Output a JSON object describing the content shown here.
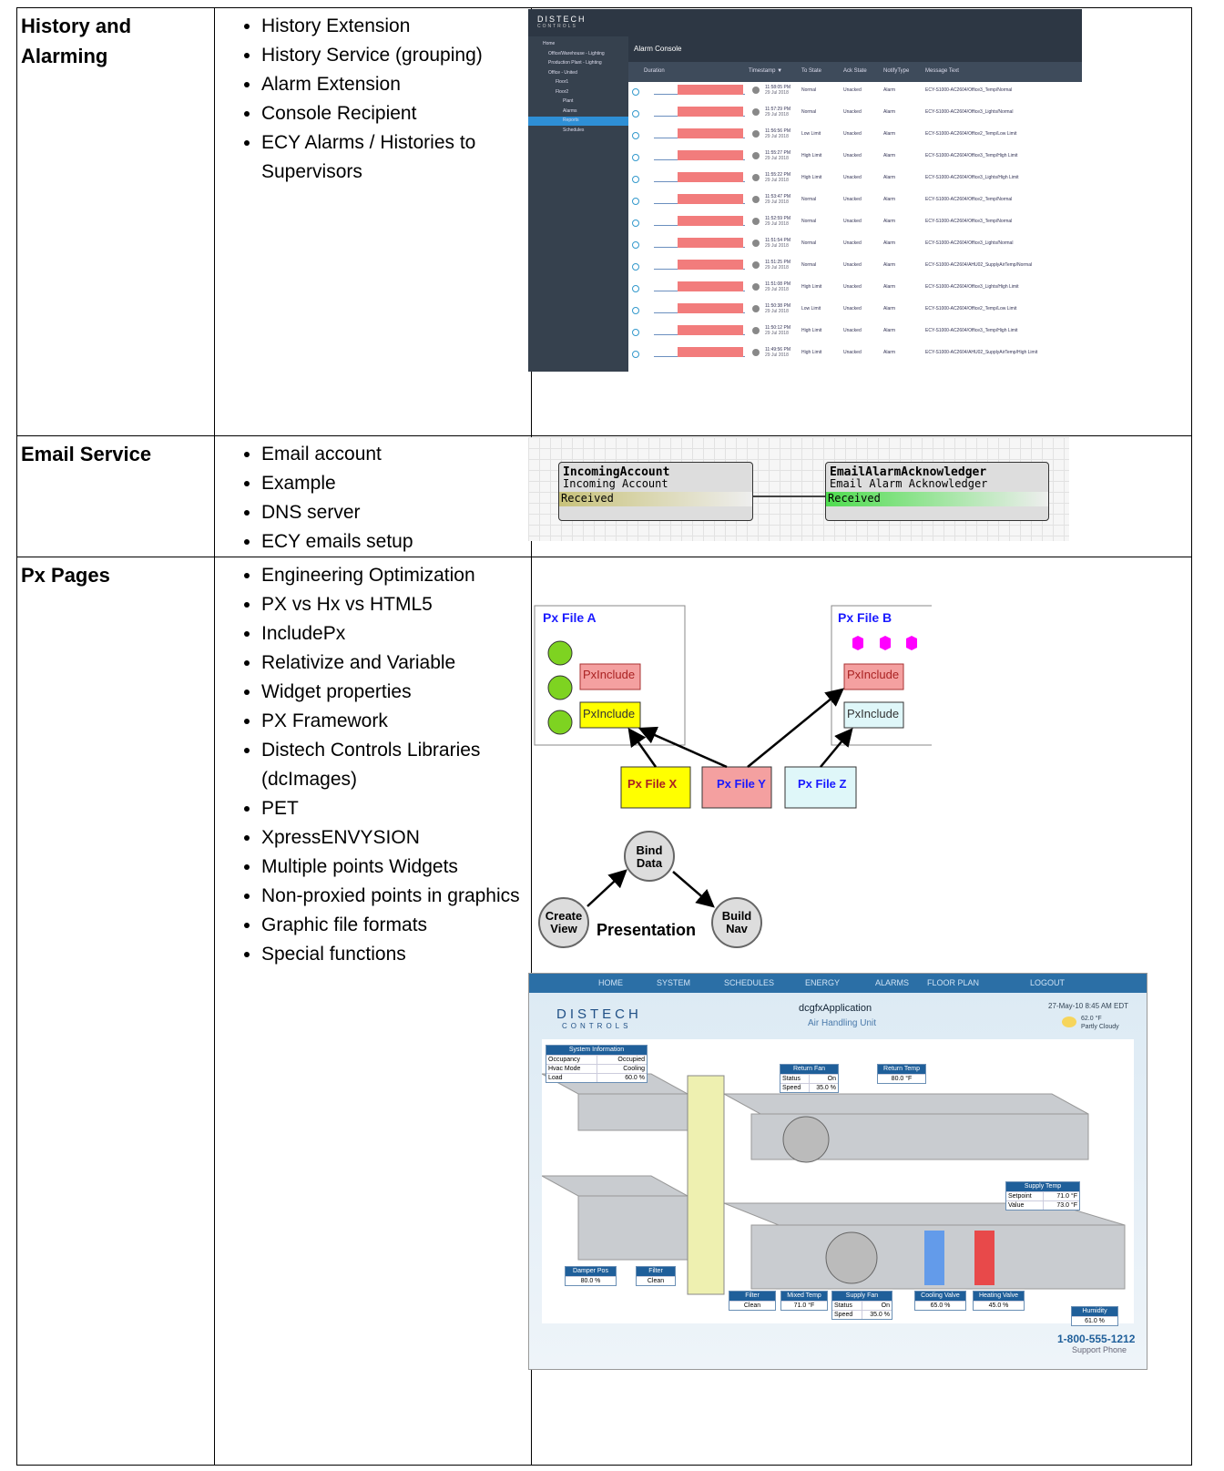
{
  "rows": [
    {
      "heading": "History and Alarming",
      "items": [
        "History Extension",
        "History Service (grouping)",
        "Alarm Extension",
        "Console Recipient",
        "ECY Alarms / Histories to Supervisors"
      ]
    },
    {
      "heading": "Email Service",
      "items": [
        "Email account",
        "Example",
        "DNS server",
        "ECY emails setup"
      ]
    },
    {
      "heading": "Px Pages",
      "items": [
        "Engineering Optimization",
        "PX vs Hx vs HTML5",
        "IncludePx",
        "Relativize and Variable",
        "Widget properties",
        "PX Framework",
        "Distech Controls Libraries (dcImages)",
        "PET",
        "XpressENVYSION",
        "Multiple points Widgets",
        "Non-proxied points in graphics",
        "Graphic file formats",
        "Special functions"
      ]
    }
  ],
  "alarm_console": {
    "logo": "DISTECH",
    "logo_sub": "CONTROLS",
    "tree": [
      "Home",
      "Office/Warehouse - Lighting",
      "Production Plant - Lighting",
      "Office - United",
      "Floor1",
      "Floor2",
      "Plant",
      "Alarms",
      "Reports",
      "Schedules"
    ],
    "title": "Alarm Console",
    "columns": [
      "Duration",
      "Timestamp ▼",
      "To State",
      "Ack State",
      "NotifyType",
      "Message Text"
    ],
    "alarms": [
      {
        "time": "11:58:05 PM",
        "date": "29 Jul 2018",
        "to_state": "Normal",
        "ack_state": "Unacked",
        "notify": "Alarm",
        "message": "ECY-S1000-AC2604/Office3_Temp/Normal"
      },
      {
        "time": "11:57:29 PM",
        "date": "29 Jul 2018",
        "to_state": "Normal",
        "ack_state": "Unacked",
        "notify": "Alarm",
        "message": "ECY-S1000-AC2604/Office3_Lights/Normal"
      },
      {
        "time": "11:56:56 PM",
        "date": "29 Jul 2018",
        "to_state": "Low Limit",
        "ack_state": "Unacked",
        "notify": "Alarm",
        "message": "ECY-S1000-AC2604/Office2_Temp/Low Limit"
      },
      {
        "time": "11:55:27 PM",
        "date": "29 Jul 2018",
        "to_state": "High Limit",
        "ack_state": "Unacked",
        "notify": "Alarm",
        "message": "ECY-S1000-AC2604/Office3_Temp/High Limit"
      },
      {
        "time": "11:55:22 PM",
        "date": "29 Jul 2018",
        "to_state": "High Limit",
        "ack_state": "Unacked",
        "notify": "Alarm",
        "message": "ECY-S1000-AC2604/Office3_Lights/High Limit"
      },
      {
        "time": "11:53:47 PM",
        "date": "29 Jul 2018",
        "to_state": "Normal",
        "ack_state": "Unacked",
        "notify": "Alarm",
        "message": "ECY-S1000-AC2604/Office2_Temp/Normal"
      },
      {
        "time": "11:52:59 PM",
        "date": "29 Jul 2018",
        "to_state": "Normal",
        "ack_state": "Unacked",
        "notify": "Alarm",
        "message": "ECY-S1000-AC2604/Office3_Temp/Normal"
      },
      {
        "time": "11:51:54 PM",
        "date": "29 Jul 2018",
        "to_state": "Normal",
        "ack_state": "Unacked",
        "notify": "Alarm",
        "message": "ECY-S1000-AC2604/Office3_Lights/Normal"
      },
      {
        "time": "11:51:25 PM",
        "date": "29 Jul 2018",
        "to_state": "Normal",
        "ack_state": "Unacked",
        "notify": "Alarm",
        "message": "ECY-S1000-AC2604/AHU02_SupplyAirTemp/Normal"
      },
      {
        "time": "11:51:08 PM",
        "date": "29 Jul 2018",
        "to_state": "High Limit",
        "ack_state": "Unacked",
        "notify": "Alarm",
        "message": "ECY-S1000-AC2604/Office3_Lights/High Limit"
      },
      {
        "time": "11:50:38 PM",
        "date": "29 Jul 2018",
        "to_state": "Low Limit",
        "ack_state": "Unacked",
        "notify": "Alarm",
        "message": "ECY-S1000-AC2604/Office2_Temp/Low Limit"
      },
      {
        "time": "11:50:12 PM",
        "date": "29 Jul 2018",
        "to_state": "High Limit",
        "ack_state": "Unacked",
        "notify": "Alarm",
        "message": "ECY-S1000-AC2604/Office3_Temp/High Limit"
      },
      {
        "time": "11:49:56 PM",
        "date": "29 Jul 2018",
        "to_state": "High Limit",
        "ack_state": "Unacked",
        "notify": "Alarm",
        "message": "ECY-S1000-AC2604/AHU02_SupplyAirTemp/High Limit"
      }
    ]
  },
  "email_diagram": {
    "nodes": [
      {
        "name": "IncomingAccount",
        "type": "Incoming Account",
        "slot": "Received"
      },
      {
        "name": "EmailAlarmAcknowledger",
        "type": "Email Alarm Acknowledger",
        "slot": "Received"
      }
    ]
  },
  "px_diagram": {
    "file_a": "Px File A",
    "file_b": "Px File B",
    "includes": [
      "PxInclude",
      "PxInclude",
      "PxInclude",
      "PxInclude"
    ],
    "sources": [
      "Px File X",
      "Px File Y",
      "Px File Z"
    ]
  },
  "presentation": {
    "bind": "Bind Data",
    "create": "Create View",
    "build": "Build Nav",
    "label": "Presentation"
  },
  "ahu_screen": {
    "nav": [
      "HOME",
      "SYSTEM",
      "SCHEDULES",
      "ENERGY",
      "ALARMS",
      "FLOOR PLAN",
      "LOGOUT"
    ],
    "logo": "DISTECH",
    "logo_sub": "CONTROLS",
    "app": "dcgfxApplication",
    "unit": "Air Handling Unit",
    "datetime": "27-May-10 8:45 AM EDT",
    "temp": "62.0 °F",
    "weather": "Partly Cloudy",
    "panels": [
      {
        "title": "System Information",
        "rows": [
          [
            "Occupancy",
            "Occupied"
          ],
          [
            "Hvac Mode",
            "Cooling"
          ],
          [
            "Load",
            "60.0 %"
          ]
        ]
      },
      {
        "title": "Return Fan",
        "rows": [
          [
            "Status",
            "On"
          ],
          [
            "Speed",
            "35.0 %"
          ]
        ]
      },
      {
        "title": "Return Temp",
        "rows": [
          [
            "80.0 °F"
          ]
        ]
      },
      {
        "title": "Supply Temp",
        "rows": [
          [
            "Setpoint",
            "71.0 °F"
          ],
          [
            "Value",
            "73.0 °F"
          ]
        ]
      },
      {
        "title": "Damper Pos",
        "rows": [
          [
            "80.0 %"
          ]
        ]
      },
      {
        "title": "Filter",
        "rows": [
          [
            "Clean"
          ]
        ]
      },
      {
        "title": "Filter",
        "rows": [
          [
            "Clean"
          ]
        ]
      },
      {
        "title": "Mixed Temp",
        "rows": [
          [
            "71.0 °F"
          ]
        ]
      },
      {
        "title": "Supply Fan",
        "rows": [
          [
            "Status",
            "On"
          ],
          [
            "Speed",
            "35.0 %"
          ]
        ]
      },
      {
        "title": "Cooling Valve",
        "rows": [
          [
            "65.0 %"
          ]
        ]
      },
      {
        "title": "Heating Valve",
        "rows": [
          [
            "45.0 %"
          ]
        ]
      },
      {
        "title": "Humidity",
        "rows": [
          [
            "61.0 %"
          ]
        ]
      }
    ],
    "phone": "1-800-555-1212",
    "phone_label": "Support Phone"
  }
}
